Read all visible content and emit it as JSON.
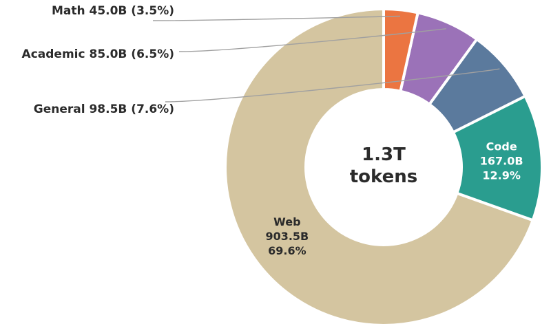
{
  "chart_data": {
    "type": "pie",
    "donut": true,
    "start_angle_deg": 0,
    "direction": "counterclockwise-from-top",
    "center_label": {
      "line1": "1.3T",
      "line2": "tokens"
    },
    "slices": [
      {
        "key": "web",
        "name": "Web",
        "value_label": "903.5B",
        "value": 903.5,
        "percent": 69.6,
        "percent_label": "69.6%",
        "color": "#d4c5a0",
        "label_color": "#2b2b2b",
        "label_mode": "inside"
      },
      {
        "key": "code",
        "name": "Code",
        "value_label": "167.0B",
        "value": 167.0,
        "percent": 12.9,
        "percent_label": "12.9%",
        "color": "#2a9d8f",
        "label_color": "#ffffff",
        "label_mode": "inside"
      },
      {
        "key": "general",
        "name": "General",
        "value_label": "98.5B",
        "value": 98.5,
        "percent": 7.6,
        "percent_label": "(7.6%)",
        "color": "#5b7a9d",
        "label_mode": "outside"
      },
      {
        "key": "academic",
        "name": "Academic",
        "value_label": "85.0B",
        "value": 85.0,
        "percent": 6.5,
        "percent_label": "(6.5%)",
        "color": "#9b72b8",
        "label_mode": "outside"
      },
      {
        "key": "math",
        "name": "Math",
        "value_label": "45.0B",
        "value": 45.0,
        "percent": 3.5,
        "percent_label": "(3.5%)",
        "color": "#eb7541",
        "label_mode": "outside"
      }
    ]
  }
}
